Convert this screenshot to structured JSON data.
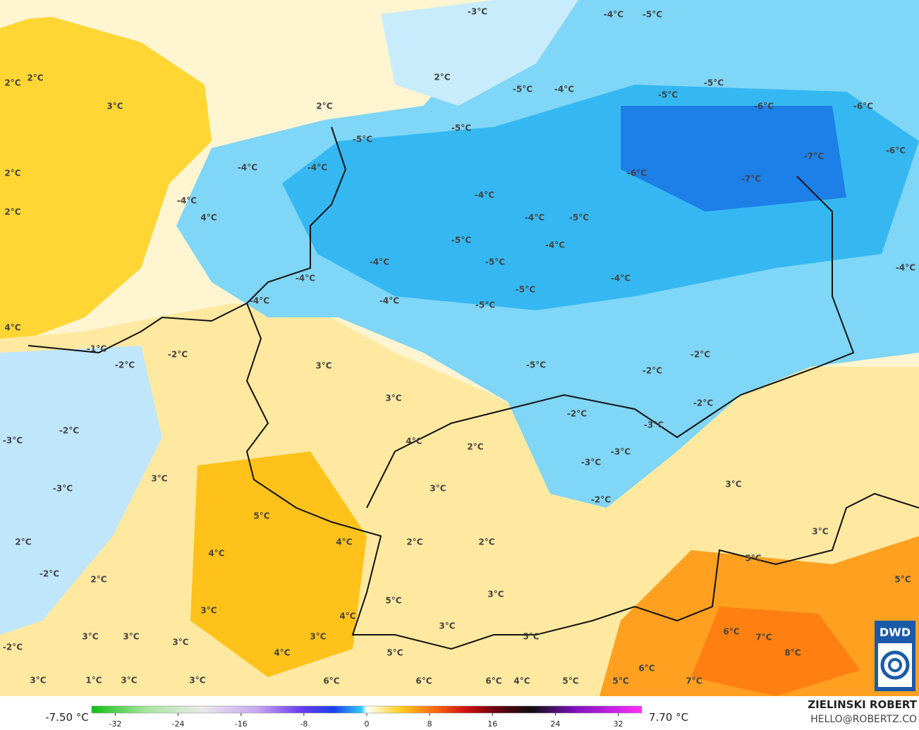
{
  "map_labels": [
    "2°C",
    "2°C",
    "3°C",
    "2°C",
    "2°C",
    "-3°C",
    "-4°C",
    "-5°C",
    "-5°C",
    "-4°C",
    "-5°C",
    "-5°C",
    "-6°C",
    "-6°C",
    "-5°C",
    "-5°C",
    "2°C",
    "-4°C",
    "-4°C",
    "-6°C",
    "-7°C",
    "-7°C",
    "-6°C",
    "2°C",
    "-4°C",
    "4°C",
    "-4°C",
    "-4°C",
    "-5°C",
    "-5°C",
    "-4°C",
    "-4°C",
    "-5°C",
    "-4°C",
    "-4°C",
    "-4°C",
    "-5°C",
    "-4°C",
    "-4°C",
    "-5°C",
    "4°C",
    "-1°C",
    "-2°C",
    "-2°C",
    "3°C",
    "-5°C",
    "-2°C",
    "-2°C",
    "3°C",
    "-2°C",
    "-2°C",
    "-2°C",
    "-3°C",
    "-3°C",
    "4°C",
    "2°C",
    "-3°C",
    "-3°C",
    "3°C",
    "-3°C",
    "3°C",
    "3°C",
    "-2°C",
    "5°C",
    "2°C",
    "4°C",
    "2°C",
    "2°C",
    "3°C",
    "4°C",
    "-2°C",
    "2°C",
    "5°C",
    "5°C",
    "3°C",
    "5°C",
    "3°C",
    "4°C",
    "3°C",
    "6°C",
    "7°C",
    "3°C",
    "3°C",
    "3°C",
    "-2°C",
    "4°C",
    "5°C",
    "5°C",
    "8°C",
    "3°C",
    "6°C",
    "3°C",
    "1°C",
    "3°C",
    "3°C",
    "6°C",
    "6°C",
    "6°C",
    "4°C",
    "5°C",
    "5°C",
    "7°C"
  ],
  "colorbar": {
    "min_label": "-7.50 °C",
    "max_label": "7.70 °C",
    "range": [
      -35,
      35
    ],
    "ticks": [
      -32,
      -24,
      -16,
      -8,
      0,
      8,
      16,
      24,
      32
    ]
  },
  "credit": {
    "name": "ZIELINSKI ROBERT",
    "contact": "HELLO@ROBERTZ.CO"
  },
  "logo": "DWD"
}
